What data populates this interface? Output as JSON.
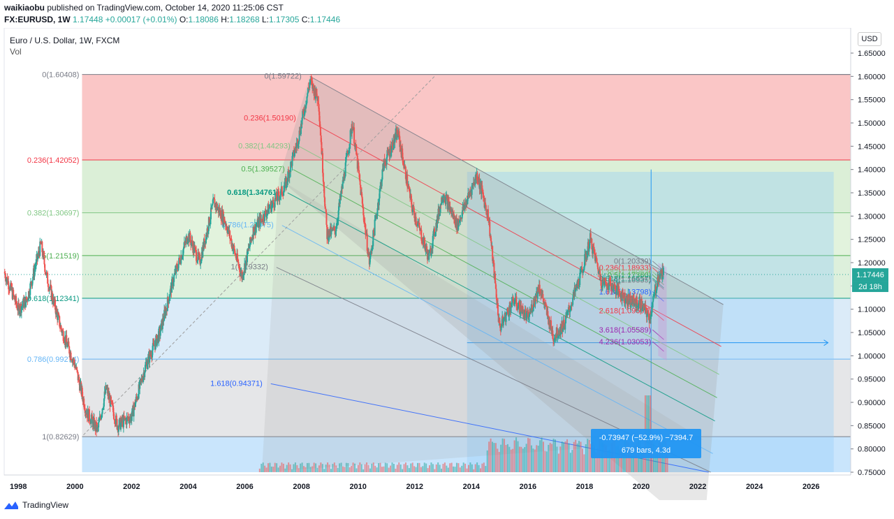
{
  "header": {
    "user": "waikiaobu",
    "published": "published on TradingView.com, October 14, 2020 11:25:06 CST",
    "symbol": "FX:EURUSD, 1W",
    "last": "1.17448",
    "change": "+0.00017 (+0.01%)",
    "o_label": "O:",
    "o": "1.18086",
    "h_label": "H:",
    "h": "1.18268",
    "l_label": "L:",
    "l": "1.17305",
    "c_label": "C:",
    "c": "1.17446"
  },
  "legend": {
    "title": "Euro / U.S. Dollar, 1W, FXCM",
    "vol": "Vol"
  },
  "currency": "USD",
  "price_tag": {
    "value": "1.17446",
    "countdown": "2d 18h"
  },
  "measure": {
    "line1": "-0.73947 (−52.9%) −7394.7",
    "line2": "679 bars, 4.3d"
  },
  "footer": {
    "brand": "TradingView"
  },
  "colors": {
    "up": "#26a69a",
    "down": "#ef5350",
    "accent": "#2196f3"
  },
  "chart_data": {
    "type": "candlestick",
    "title": "Euro / U.S. Dollar, 1W, FXCM",
    "ylim": [
      0.75,
      1.65
    ],
    "xlim": [
      1997.5,
      2027.4
    ],
    "yticks": [
      "1.65000",
      "1.60000",
      "1.55000",
      "1.50000",
      "1.45000",
      "1.40000",
      "1.35000",
      "1.30000",
      "1.25000",
      "1.20000",
      "1.15000",
      "1.10000",
      "1.05000",
      "1.00000",
      "0.95000",
      "0.90000",
      "0.85000",
      "0.80000",
      "0.75000"
    ],
    "xticks": [
      {
        "x": 1998,
        "label": "1998"
      },
      {
        "x": 2000,
        "label": "2000"
      },
      {
        "x": 2002,
        "label": "2002"
      },
      {
        "x": 2004,
        "label": "2004"
      },
      {
        "x": 2006,
        "label": "2006"
      },
      {
        "x": 2008,
        "label": "2008"
      },
      {
        "x": 2010,
        "label": "2010"
      },
      {
        "x": 2012,
        "label": "2012"
      },
      {
        "x": 2014,
        "label": "2014"
      },
      {
        "x": 2016,
        "label": "2016"
      },
      {
        "x": 2018,
        "label": "2018"
      },
      {
        "x": 2020,
        "label": "2020"
      },
      {
        "x": 2022,
        "label": "2022"
      },
      {
        "x": 2024,
        "label": "2024"
      },
      {
        "x": 2026,
        "label": "2026"
      }
    ],
    "price_path": [
      [
        1997.5,
        1.18
      ],
      [
        1998.0,
        1.1
      ],
      [
        1998.3,
        1.12
      ],
      [
        1998.8,
        1.24
      ],
      [
        1999.0,
        1.17
      ],
      [
        1999.5,
        1.06
      ],
      [
        2000.0,
        0.98
      ],
      [
        2000.4,
        0.88
      ],
      [
        2000.8,
        0.84
      ],
      [
        2001.1,
        0.93
      ],
      [
        2001.5,
        0.85
      ],
      [
        2002.0,
        0.87
      ],
      [
        2002.5,
        0.98
      ],
      [
        2003.0,
        1.05
      ],
      [
        2003.5,
        1.17
      ],
      [
        2004.0,
        1.26
      ],
      [
        2004.4,
        1.2
      ],
      [
        2004.9,
        1.33
      ],
      [
        2005.3,
        1.29
      ],
      [
        2005.9,
        1.17
      ],
      [
        2006.3,
        1.27
      ],
      [
        2006.9,
        1.32
      ],
      [
        2007.4,
        1.36
      ],
      [
        2007.9,
        1.47
      ],
      [
        2008.3,
        1.59
      ],
      [
        2008.6,
        1.55
      ],
      [
        2008.9,
        1.26
      ],
      [
        2009.2,
        1.27
      ],
      [
        2009.8,
        1.5
      ],
      [
        2010.4,
        1.2
      ],
      [
        2010.9,
        1.41
      ],
      [
        2011.4,
        1.48
      ],
      [
        2011.9,
        1.32
      ],
      [
        2012.5,
        1.21
      ],
      [
        2013.0,
        1.35
      ],
      [
        2013.5,
        1.28
      ],
      [
        2014.2,
        1.39
      ],
      [
        2014.6,
        1.3
      ],
      [
        2015.0,
        1.06
      ],
      [
        2015.5,
        1.12
      ],
      [
        2016.0,
        1.08
      ],
      [
        2016.4,
        1.15
      ],
      [
        2016.9,
        1.04
      ],
      [
        2017.3,
        1.07
      ],
      [
        2017.9,
        1.18
      ],
      [
        2018.2,
        1.25
      ],
      [
        2018.6,
        1.16
      ],
      [
        2019.0,
        1.15
      ],
      [
        2019.5,
        1.12
      ],
      [
        2020.0,
        1.11
      ],
      [
        2020.3,
        1.08
      ],
      [
        2020.6,
        1.17
      ],
      [
        2020.8,
        1.18
      ]
    ],
    "volume_note": "weekly volume bars",
    "fib_retracement": {
      "levels": [
        {
          "ratio": "0",
          "price": 1.60408,
          "label": "0(1.60408)",
          "color": "#787b86"
        },
        {
          "ratio": "0.236",
          "price": 1.42052,
          "label": "0.236(1.42052)",
          "color": "#f23645"
        },
        {
          "ratio": "0.382",
          "price": 1.30697,
          "label": "0.382(1.30697)",
          "color": "#81c784"
        },
        {
          "ratio": "0.5",
          "price": 1.21519,
          "label": "0.5(1.21519)",
          "color": "#4caf50"
        },
        {
          "ratio": "0.618",
          "price": 1.12341,
          "label": "0.618(1.12341)",
          "color": "#089981"
        },
        {
          "ratio": "0.786",
          "price": 0.99274,
          "label": "0.786(0.99274)",
          "color": "#64b5f6"
        },
        {
          "ratio": "1",
          "price": 0.82629,
          "label": "1(0.82629)",
          "color": "#787b86"
        }
      ]
    },
    "fib_channel": {
      "levels": [
        {
          "label": "0(1.59722)",
          "color": "#787b86"
        },
        {
          "label": "0.236(1.50190)",
          "color": "#f23645"
        },
        {
          "label": "0.382(1.44293)",
          "color": "#81c784"
        },
        {
          "label": "0.5(1.39527)",
          "color": "#4caf50"
        },
        {
          "label": "0.618(1.34761)",
          "color": "#089981"
        },
        {
          "label": "0.786(1.27975)",
          "color": "#64b5f6"
        },
        {
          "label": "1(1.19332)",
          "color": "#787b86"
        },
        {
          "label": "1.618(0.94371)",
          "color": "#2962ff"
        }
      ]
    },
    "fib_extension_small": {
      "levels": [
        {
          "label": "0(1.20339)",
          "color": "#787b86"
        },
        {
          "label": "0.236(1.18933)",
          "color": "#f23645"
        },
        {
          "label": "0.382(1.18063)",
          "color": "#81c784"
        },
        {
          "label": "0.5(1.17360)",
          "color": "#4caf50"
        },
        {
          "label": "0.618(1.16657)",
          "color": "#089981"
        },
        {
          "label": "1(1.16335)",
          "color": "#787b86"
        },
        {
          "label": "1.618(1.13798)",
          "color": "#2962ff"
        },
        {
          "label": "2.618(1.09694)",
          "color": "#f23645"
        },
        {
          "label": "3.618(1.05589)",
          "color": "#9c27b0"
        },
        {
          "label": "4.236(1.03053)",
          "color": "#9c27b0"
        }
      ]
    }
  }
}
